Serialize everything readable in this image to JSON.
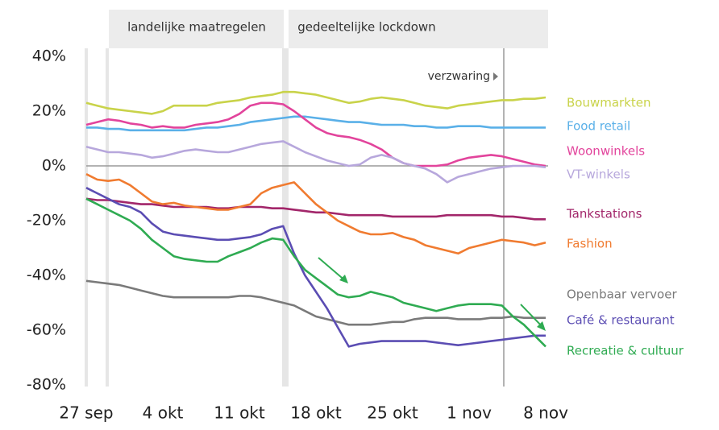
{
  "chart_data": {
    "type": "line",
    "annotations": [
      "landelijke maatregelen",
      "gedeeltelijke lockdown",
      "verzwaring"
    ],
    "categories": [
      "27 sep",
      null,
      null,
      null,
      null,
      null,
      null,
      "4 okt",
      null,
      null,
      null,
      null,
      null,
      null,
      "11 okt",
      null,
      null,
      null,
      null,
      null,
      null,
      "18 okt",
      null,
      null,
      null,
      null,
      null,
      null,
      "25 okt",
      null,
      null,
      null,
      null,
      null,
      null,
      "1 nov",
      null,
      null,
      null,
      null,
      null,
      null,
      "8 nov"
    ],
    "ylim": [
      -80,
      40
    ],
    "yticks": [
      {
        "value": 40,
        "label": "40%"
      },
      {
        "value": 20,
        "label": "20%"
      },
      {
        "value": 0,
        "label": "0%"
      },
      {
        "value": -20,
        "label": "-20%"
      },
      {
        "value": -40,
        "label": "-40%"
      },
      {
        "value": -60,
        "label": "-60%"
      },
      {
        "value": -80,
        "label": "-80%"
      }
    ],
    "zero_line": true,
    "series": [
      {
        "name": "Bouwmarkten",
        "color": "#c9d34a",
        "values": [
          23,
          22,
          21,
          20.5,
          20,
          19.5,
          19,
          20,
          22,
          22,
          22,
          22,
          23,
          23.5,
          24,
          25,
          25.5,
          26,
          27,
          27,
          26.5,
          26,
          25,
          24,
          23,
          23.5,
          24.5,
          25,
          24.5,
          24,
          23,
          22,
          21.5,
          21,
          22,
          22.5,
          23,
          23.5,
          24,
          24,
          24.5,
          24.5,
          25
        ]
      },
      {
        "name": "Food retail",
        "color": "#5ab0e8",
        "values": [
          14,
          14,
          13.5,
          13.5,
          13,
          13,
          13,
          13,
          13,
          13,
          13.5,
          14,
          14,
          14.5,
          15,
          16,
          16.5,
          17,
          17.5,
          18,
          18,
          17.5,
          17,
          16.5,
          16,
          16,
          15.5,
          15,
          15,
          15,
          14.5,
          14.5,
          14,
          14,
          14.5,
          14.5,
          14.5,
          14,
          14,
          14,
          14,
          14,
          14
        ]
      },
      {
        "name": "Woonwinkels",
        "color": "#e2449c",
        "values": [
          15,
          16,
          17,
          16.5,
          15.5,
          15,
          14,
          14.5,
          14,
          14,
          15,
          15.5,
          16,
          17,
          19,
          22,
          23,
          23,
          22.5,
          20,
          17,
          14,
          12,
          11,
          10.5,
          9.5,
          8,
          6,
          3,
          1,
          0,
          0,
          0,
          0.5,
          2,
          3,
          3.5,
          4,
          3.5,
          2.5,
          1.5,
          0.5,
          0
        ]
      },
      {
        "name": "VT-winkels",
        "color": "#b7a7dc",
        "values": [
          7,
          6,
          5,
          5,
          4.5,
          4,
          3,
          3.5,
          4.5,
          5.5,
          6,
          5.5,
          5,
          5,
          6,
          7,
          8,
          8.5,
          9,
          7,
          5,
          3.5,
          2,
          1,
          0,
          0.5,
          3,
          4,
          3,
          1,
          0,
          -1,
          -3,
          -6,
          -4,
          -3,
          -2,
          -1,
          -0.5,
          0,
          0,
          0,
          -0.5
        ]
      },
      {
        "name": "Tankstations",
        "color": "#a2266a",
        "values": [
          -12,
          -12.5,
          -12.5,
          -13,
          -13.5,
          -14,
          -14,
          -14.5,
          -15,
          -15,
          -15,
          -15,
          -15.5,
          -15.5,
          -15,
          -15,
          -15,
          -15.5,
          -15.5,
          -16,
          -16.5,
          -17,
          -17,
          -17.5,
          -18,
          -18,
          -18,
          -18,
          -18.5,
          -18.5,
          -18.5,
          -18.5,
          -18.5,
          -18,
          -18,
          -18,
          -18,
          -18,
          -18.5,
          -18.5,
          -19,
          -19.5,
          -19.5
        ]
      },
      {
        "name": "Fashion",
        "color": "#f07b30",
        "values": [
          -3,
          -5,
          -5.5,
          -5,
          -7,
          -10,
          -13,
          -14,
          -13.5,
          -14.5,
          -15,
          -15.5,
          -16,
          -16,
          -15,
          -14,
          -10,
          -8,
          -7,
          -6,
          -10,
          -14,
          -17,
          -20,
          -22,
          -24,
          -25,
          -25,
          -24.5,
          -26,
          -27,
          -29,
          -30,
          -31,
          -32,
          -30,
          -29,
          -28,
          -27,
          -27.5,
          -28,
          -29,
          -28
        ]
      },
      {
        "name": "Openbaar vervoer",
        "color": "#7a7a7a",
        "values": [
          -42,
          -42.5,
          -43,
          -43.5,
          -44.5,
          -45.5,
          -46.5,
          -47.5,
          -48,
          -48,
          -48,
          -48,
          -48,
          -48,
          -47.5,
          -47.5,
          -48,
          -49,
          -50,
          -51,
          -53,
          -55,
          -56,
          -57,
          -58,
          -58,
          -58,
          -57.5,
          -57,
          -57,
          -56,
          -55.5,
          -55.5,
          -55.5,
          -56,
          -56,
          -56,
          -55.5,
          -55.5,
          -55,
          -55.5,
          -55.5,
          -55.5
        ]
      },
      {
        "name": "Café & restaurant",
        "color": "#5b4db3",
        "values": [
          -8,
          -10,
          -12,
          -14,
          -15,
          -17,
          -21,
          -24,
          -25,
          -25.5,
          -26,
          -26.5,
          -27,
          -27,
          -26.5,
          -26,
          -25,
          -23,
          -22,
          -32,
          -40,
          -46,
          -52,
          -59,
          -66,
          -65,
          -64.5,
          -64,
          -64,
          -64,
          -64,
          -64,
          -64.5,
          -65,
          -65.5,
          -65,
          -64.5,
          -64,
          -63.5,
          -63,
          -62.5,
          -62,
          -62
        ]
      },
      {
        "name": "Recreatie & cultuur",
        "color": "#2fab52",
        "values": [
          -12,
          -14,
          -16,
          -18,
          -20,
          -23,
          -27,
          -30,
          -33,
          -34,
          -34.5,
          -35,
          -35,
          -33,
          -31.5,
          -30,
          -28,
          -26.5,
          -27,
          -33,
          -38,
          -41,
          -44,
          -47,
          -48,
          -47.5,
          -46,
          -47,
          -48,
          -50,
          -51,
          -52,
          -53,
          -52,
          -51,
          -50.5,
          -50.5,
          -50.5,
          -51,
          -55,
          -58,
          -62,
          -66
        ]
      }
    ]
  }
}
